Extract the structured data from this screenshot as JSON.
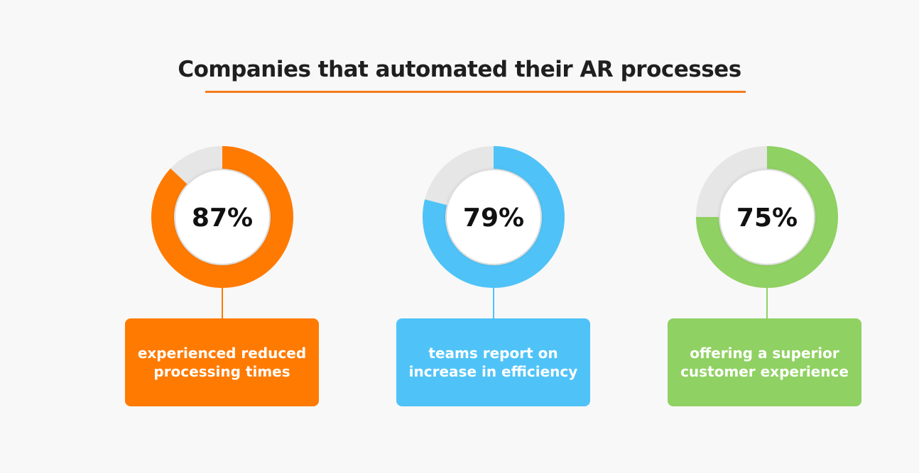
{
  "title": "Companies that automated their AR processes",
  "title_underline_color": "#f57a1f",
  "track_color": "#e6e6e6",
  "chart_data": {
    "type": "donut",
    "title": "Companies that automated their AR processes",
    "series": [
      {
        "value": 87,
        "label": "87%",
        "caption": "experienced reduced processing times",
        "color": "#ff7a00"
      },
      {
        "value": 79,
        "label": "79%",
        "caption": "teams report on increase in efficiency",
        "color": "#4fc3f7"
      },
      {
        "value": 75,
        "label": "75%",
        "caption": "offering a superior customer experience",
        "color": "#8fd162"
      }
    ]
  }
}
